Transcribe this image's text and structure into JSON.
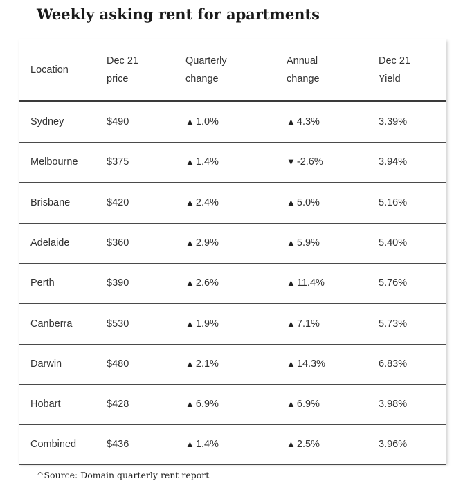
{
  "title": "Weekly asking rent for apartments",
  "source": "^Source: Domain quarterly rent report",
  "chart_data": {
    "type": "table",
    "title": "Weekly asking rent for apartments",
    "columns": [
      {
        "line1": "Location",
        "line2": ""
      },
      {
        "line1": "Dec 21",
        "line2": "price"
      },
      {
        "line1": "Quarterly",
        "line2": "change"
      },
      {
        "line1": "Annual",
        "line2": "change"
      },
      {
        "line1": "Dec 21",
        "line2": "Yield"
      }
    ],
    "rows": [
      {
        "location": "Sydney",
        "price": "$490",
        "q_dir": "up",
        "q_change": "1.0%",
        "a_dir": "up",
        "a_change": "4.3%",
        "yield": "3.39%"
      },
      {
        "location": "Melbourne",
        "price": "$375",
        "q_dir": "up",
        "q_change": "1.4%",
        "a_dir": "down",
        "a_change": "-2.6%",
        "yield": "3.94%"
      },
      {
        "location": "Brisbane",
        "price": "$420",
        "q_dir": "up",
        "q_change": "2.4%",
        "a_dir": "up",
        "a_change": "5.0%",
        "yield": "5.16%"
      },
      {
        "location": "Adelaide",
        "price": "$360",
        "q_dir": "up",
        "q_change": "2.9%",
        "a_dir": "up",
        "a_change": "5.9%",
        "yield": "5.40%"
      },
      {
        "location": "Perth",
        "price": "$390",
        "q_dir": "up",
        "q_change": "2.6%",
        "a_dir": "up",
        "a_change": "11.4%",
        "yield": "5.76%"
      },
      {
        "location": "Canberra",
        "price": "$530",
        "q_dir": "up",
        "q_change": "1.9%",
        "a_dir": "up",
        "a_change": "7.1%",
        "yield": "5.73%"
      },
      {
        "location": "Darwin",
        "price": "$480",
        "q_dir": "up",
        "q_change": "2.1%",
        "a_dir": "up",
        "a_change": "14.3%",
        "yield": "6.83%"
      },
      {
        "location": "Hobart",
        "price": "$428",
        "q_dir": "up",
        "q_change": "6.9%",
        "a_dir": "up",
        "a_change": "6.9%",
        "yield": "3.98%"
      },
      {
        "location": "Combined",
        "price": "$436",
        "q_dir": "up",
        "q_change": "1.4%",
        "a_dir": "up",
        "a_change": "2.5%",
        "yield": "3.96%"
      }
    ],
    "arrow_glyphs": {
      "up": "▲",
      "down": "▼"
    }
  }
}
